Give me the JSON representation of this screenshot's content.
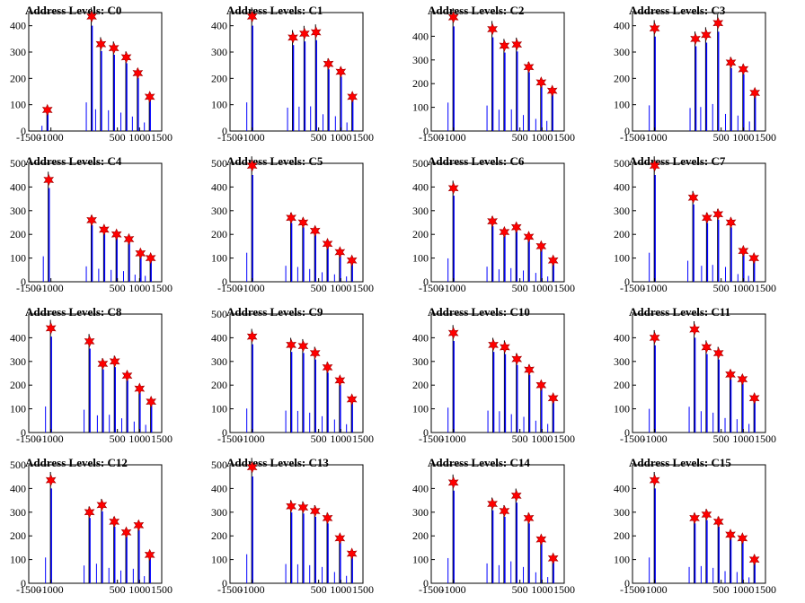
{
  "colors": {
    "histogram_line": "#0000ff",
    "histogram_bg": "#000000",
    "marker": "#ff0000",
    "marker_edge": "#a00000"
  },
  "chart_data": [
    {
      "type": "bar",
      "title": "Address Levels: C0",
      "xlim": [
        -1500,
        1500
      ],
      "ylim": [
        0,
        450
      ],
      "x_ticks": [
        -1500,
        -1000,
        500,
        1000,
        1500
      ],
      "y_ticks": [
        0,
        100,
        200,
        300,
        400
      ],
      "markers": [
        {
          "x": -1080,
          "y": 80
        },
        {
          "x": -80,
          "y": 435
        },
        {
          "x": 130,
          "y": 330
        },
        {
          "x": 420,
          "y": 315
        },
        {
          "x": 700,
          "y": 280
        },
        {
          "x": 960,
          "y": 220
        },
        {
          "x": 1230,
          "y": 130
        }
      ]
    },
    {
      "type": "bar",
      "title": "Address Levels: C1",
      "xlim": [
        -1500,
        1500
      ],
      "ylim": [
        0,
        450
      ],
      "x_ticks": [
        -1500,
        -1000,
        500,
        1000,
        1500
      ],
      "y_ticks": [
        0,
        100,
        200,
        300,
        400
      ],
      "markers": [
        {
          "x": -1000,
          "y": 435
        },
        {
          "x": -80,
          "y": 355
        },
        {
          "x": 180,
          "y": 370
        },
        {
          "x": 440,
          "y": 375
        },
        {
          "x": 720,
          "y": 255
        },
        {
          "x": 1000,
          "y": 225
        },
        {
          "x": 1260,
          "y": 130
        }
      ]
    },
    {
      "type": "bar",
      "title": "Address Levels: C2",
      "xlim": [
        -1500,
        1500
      ],
      "ylim": [
        0,
        500
      ],
      "x_ticks": [
        -1500,
        -1000,
        500,
        1000,
        1500
      ],
      "y_ticks": [
        0,
        100,
        200,
        300,
        400
      ],
      "markers": [
        {
          "x": -1000,
          "y": 480
        },
        {
          "x": -120,
          "y": 430
        },
        {
          "x": 150,
          "y": 360
        },
        {
          "x": 430,
          "y": 365
        },
        {
          "x": 700,
          "y": 270
        },
        {
          "x": 980,
          "y": 205
        },
        {
          "x": 1230,
          "y": 170
        }
      ]
    },
    {
      "type": "bar",
      "title": "Address Levels: C3",
      "xlim": [
        -1500,
        1500
      ],
      "ylim": [
        0,
        450
      ],
      "x_ticks": [
        -1500,
        -1000,
        500,
        1000,
        1500
      ],
      "y_ticks": [
        0,
        100,
        200,
        300,
        400
      ],
      "markers": [
        {
          "x": -1000,
          "y": 390
        },
        {
          "x": -80,
          "y": 350
        },
        {
          "x": 160,
          "y": 365
        },
        {
          "x": 430,
          "y": 410
        },
        {
          "x": 720,
          "y": 260
        },
        {
          "x": 1000,
          "y": 235
        },
        {
          "x": 1260,
          "y": 145
        }
      ]
    },
    {
      "type": "bar",
      "title": "Address Levels: C4",
      "xlim": [
        -1500,
        1500
      ],
      "ylim": [
        0,
        500
      ],
      "x_ticks": [
        -1500,
        -1000,
        500,
        1000,
        1500
      ],
      "y_ticks": [
        0,
        100,
        200,
        300,
        400,
        500
      ],
      "markers": [
        {
          "x": -1050,
          "y": 430
        },
        {
          "x": -80,
          "y": 260
        },
        {
          "x": 200,
          "y": 220
        },
        {
          "x": 480,
          "y": 200
        },
        {
          "x": 760,
          "y": 180
        },
        {
          "x": 1020,
          "y": 120
        },
        {
          "x": 1250,
          "y": 100
        }
      ]
    },
    {
      "type": "bar",
      "title": "Address Levels: C5",
      "xlim": [
        -1500,
        1500
      ],
      "ylim": [
        0,
        500
      ],
      "x_ticks": [
        -1500,
        -1000,
        500,
        1000,
        1500
      ],
      "y_ticks": [
        0,
        100,
        200,
        300,
        400,
        500
      ],
      "markers": [
        {
          "x": -1000,
          "y": 490
        },
        {
          "x": -120,
          "y": 270
        },
        {
          "x": 150,
          "y": 250
        },
        {
          "x": 420,
          "y": 215
        },
        {
          "x": 700,
          "y": 160
        },
        {
          "x": 980,
          "y": 125
        },
        {
          "x": 1250,
          "y": 90
        }
      ]
    },
    {
      "type": "bar",
      "title": "Address Levels: C6",
      "xlim": [
        -1500,
        1500
      ],
      "ylim": [
        0,
        500
      ],
      "x_ticks": [
        -1500,
        -1000,
        500,
        1000,
        1500
      ],
      "y_ticks": [
        0,
        100,
        200,
        300,
        400,
        500
      ],
      "markers": [
        {
          "x": -1000,
          "y": 395
        },
        {
          "x": -120,
          "y": 255
        },
        {
          "x": 150,
          "y": 210
        },
        {
          "x": 420,
          "y": 230
        },
        {
          "x": 700,
          "y": 190
        },
        {
          "x": 980,
          "y": 150
        },
        {
          "x": 1250,
          "y": 90
        }
      ]
    },
    {
      "type": "bar",
      "title": "Address Levels: C7",
      "xlim": [
        -1500,
        1500
      ],
      "ylim": [
        0,
        500
      ],
      "x_ticks": [
        -1500,
        -1000,
        500,
        1000,
        1500
      ],
      "y_ticks": [
        0,
        100,
        200,
        300,
        400,
        500
      ],
      "markers": [
        {
          "x": -1000,
          "y": 490
        },
        {
          "x": -130,
          "y": 355
        },
        {
          "x": 180,
          "y": 270
        },
        {
          "x": 430,
          "y": 285
        },
        {
          "x": 720,
          "y": 250
        },
        {
          "x": 1000,
          "y": 130
        },
        {
          "x": 1240,
          "y": 100
        }
      ]
    },
    {
      "type": "bar",
      "title": "Address Levels: C8",
      "xlim": [
        -1500,
        1500
      ],
      "ylim": [
        0,
        500
      ],
      "x_ticks": [
        -1500,
        -1000,
        500,
        1000,
        1500
      ],
      "y_ticks": [
        0,
        100,
        200,
        300,
        400
      ],
      "markers": [
        {
          "x": -1000,
          "y": 440
        },
        {
          "x": -130,
          "y": 385
        },
        {
          "x": 170,
          "y": 290
        },
        {
          "x": 440,
          "y": 300
        },
        {
          "x": 720,
          "y": 240
        },
        {
          "x": 1000,
          "y": 185
        },
        {
          "x": 1260,
          "y": 130
        }
      ]
    },
    {
      "type": "bar",
      "title": "Address Levels: C9",
      "xlim": [
        -1500,
        1500
      ],
      "ylim": [
        0,
        500
      ],
      "x_ticks": [
        -1500,
        -1000,
        500,
        1000,
        1500
      ],
      "y_ticks": [
        0,
        100,
        200,
        300,
        400,
        500
      ],
      "markers": [
        {
          "x": -1000,
          "y": 405
        },
        {
          "x": -120,
          "y": 370
        },
        {
          "x": 150,
          "y": 365
        },
        {
          "x": 420,
          "y": 335
        },
        {
          "x": 700,
          "y": 275
        },
        {
          "x": 980,
          "y": 220
        },
        {
          "x": 1250,
          "y": 140
        }
      ]
    },
    {
      "type": "bar",
      "title": "Address Levels: C10",
      "xlim": [
        -1500,
        1500
      ],
      "ylim": [
        0,
        500
      ],
      "x_ticks": [
        -1500,
        -1000,
        500,
        1000,
        1500
      ],
      "y_ticks": [
        0,
        100,
        200,
        300,
        400
      ],
      "markers": [
        {
          "x": -1000,
          "y": 420
        },
        {
          "x": -100,
          "y": 370
        },
        {
          "x": 160,
          "y": 360
        },
        {
          "x": 430,
          "y": 310
        },
        {
          "x": 710,
          "y": 265
        },
        {
          "x": 980,
          "y": 200
        },
        {
          "x": 1250,
          "y": 145
        }
      ]
    },
    {
      "type": "bar",
      "title": "Address Levels: C11",
      "xlim": [
        -1500,
        1500
      ],
      "ylim": [
        0,
        500
      ],
      "x_ticks": [
        -1500,
        -1000,
        500,
        1000,
        1500
      ],
      "y_ticks": [
        0,
        100,
        200,
        300,
        400
      ],
      "markers": [
        {
          "x": -1000,
          "y": 400
        },
        {
          "x": -100,
          "y": 435
        },
        {
          "x": 170,
          "y": 360
        },
        {
          "x": 440,
          "y": 335
        },
        {
          "x": 710,
          "y": 245
        },
        {
          "x": 980,
          "y": 225
        },
        {
          "x": 1250,
          "y": 145
        }
      ]
    },
    {
      "type": "bar",
      "title": "Address Levels: C12",
      "xlim": [
        -1500,
        1500
      ],
      "ylim": [
        0,
        500
      ],
      "x_ticks": [
        -1500,
        -1000,
        500,
        1000,
        1500
      ],
      "y_ticks": [
        0,
        100,
        200,
        300,
        400,
        500
      ],
      "markers": [
        {
          "x": -1000,
          "y": 435
        },
        {
          "x": -130,
          "y": 300
        },
        {
          "x": 150,
          "y": 330
        },
        {
          "x": 430,
          "y": 260
        },
        {
          "x": 700,
          "y": 215
        },
        {
          "x": 980,
          "y": 245
        },
        {
          "x": 1230,
          "y": 120
        }
      ]
    },
    {
      "type": "bar",
      "title": "Address Levels: C13",
      "xlim": [
        -1500,
        1500
      ],
      "ylim": [
        0,
        500
      ],
      "x_ticks": [
        -1500,
        -1000,
        500,
        1000,
        1500
      ],
      "y_ticks": [
        0,
        100,
        200,
        300,
        400,
        500
      ],
      "markers": [
        {
          "x": -1000,
          "y": 490
        },
        {
          "x": -120,
          "y": 325
        },
        {
          "x": 150,
          "y": 320
        },
        {
          "x": 420,
          "y": 305
        },
        {
          "x": 700,
          "y": 275
        },
        {
          "x": 980,
          "y": 190
        },
        {
          "x": 1250,
          "y": 125
        }
      ]
    },
    {
      "type": "bar",
      "title": "Address Levels: C14",
      "xlim": [
        -1500,
        1500
      ],
      "ylim": [
        0,
        500
      ],
      "x_ticks": [
        -1500,
        -1000,
        500,
        1000,
        1500
      ],
      "y_ticks": [
        0,
        100,
        200,
        300,
        400
      ],
      "markers": [
        {
          "x": -1000,
          "y": 425
        },
        {
          "x": -120,
          "y": 335
        },
        {
          "x": 150,
          "y": 305
        },
        {
          "x": 420,
          "y": 370
        },
        {
          "x": 700,
          "y": 275
        },
        {
          "x": 980,
          "y": 185
        },
        {
          "x": 1250,
          "y": 105
        }
      ]
    },
    {
      "type": "bar",
      "title": "Address Levels: C15",
      "xlim": [
        -1500,
        1500
      ],
      "ylim": [
        0,
        500
      ],
      "x_ticks": [
        -1500,
        -1000,
        500,
        1000,
        1500
      ],
      "y_ticks": [
        0,
        100,
        200,
        300,
        400
      ],
      "markers": [
        {
          "x": -1000,
          "y": 435
        },
        {
          "x": -100,
          "y": 275
        },
        {
          "x": 170,
          "y": 290
        },
        {
          "x": 440,
          "y": 260
        },
        {
          "x": 710,
          "y": 205
        },
        {
          "x": 980,
          "y": 190
        },
        {
          "x": 1250,
          "y": 100
        }
      ]
    }
  ]
}
